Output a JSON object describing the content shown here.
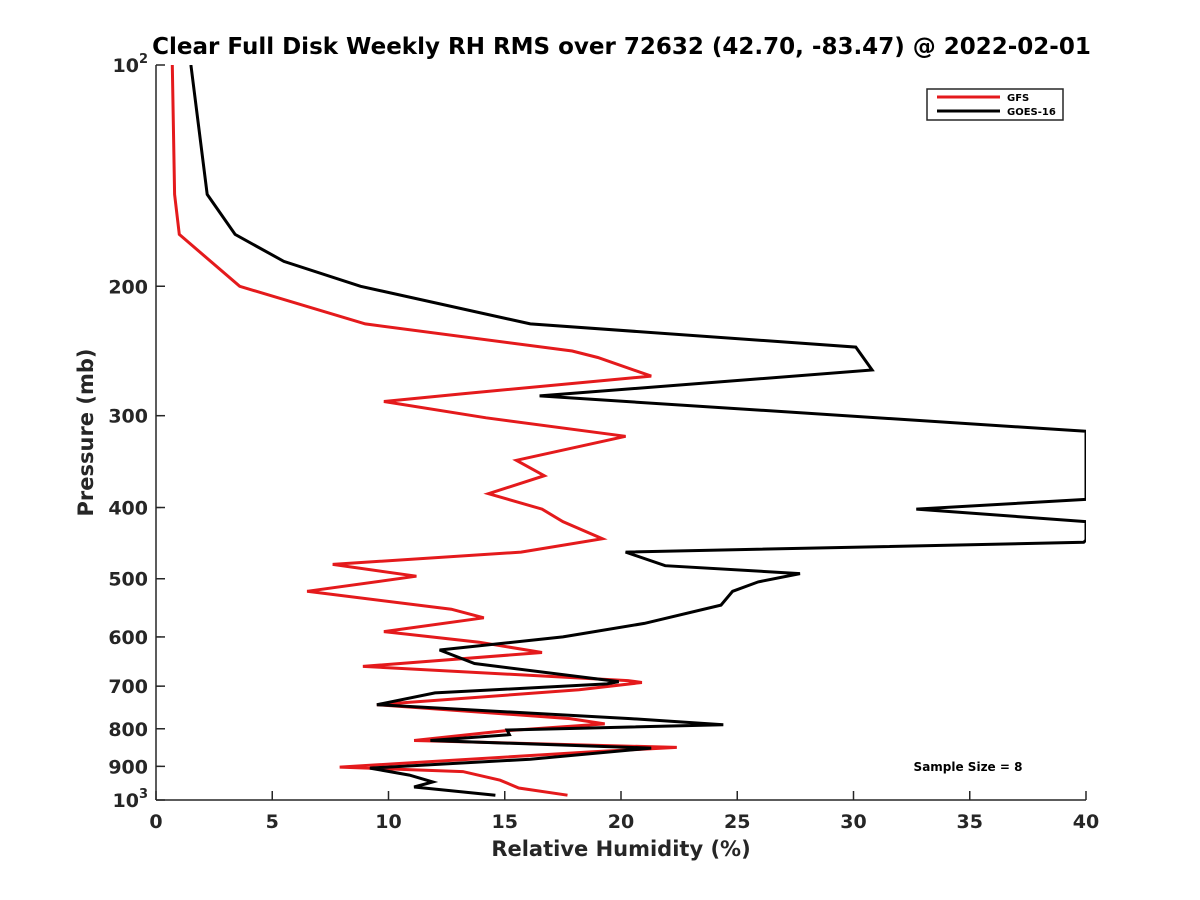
{
  "chart_data": {
    "type": "line",
    "orientation": "profile",
    "title": "Clear Full Disk Weekly RH RMS over 72632 (42.70, -83.47) @ 2022-02-01",
    "xlabel": "Relative Humidity (%)",
    "ylabel": "Pressure (mb)",
    "xlim": [
      0,
      40
    ],
    "ylim": [
      100,
      1000
    ],
    "yscale": "log",
    "yreversed": true,
    "x_ticks": [
      0,
      5,
      10,
      15,
      20,
      25,
      30,
      35,
      40
    ],
    "y_ticks": [
      {
        "value": 100,
        "label": "10",
        "sup": "2"
      },
      {
        "value": 200,
        "label": "200",
        "sup": ""
      },
      {
        "value": 300,
        "label": "300",
        "sup": ""
      },
      {
        "value": 400,
        "label": "400",
        "sup": ""
      },
      {
        "value": 500,
        "label": "500",
        "sup": ""
      },
      {
        "value": 600,
        "label": "600",
        "sup": ""
      },
      {
        "value": 700,
        "label": "700",
        "sup": ""
      },
      {
        "value": 800,
        "label": "800",
        "sup": ""
      },
      {
        "value": 900,
        "label": "900",
        "sup": ""
      },
      {
        "value": 1000,
        "label": "10",
        "sup": "3"
      }
    ],
    "grid": false,
    "legend_position": "top-right",
    "series": [
      {
        "name": "GFS",
        "color": "#e41a1c",
        "points": [
          [
            0.7,
            100
          ],
          [
            0.8,
            150
          ],
          [
            1.0,
            170
          ],
          [
            3.6,
            200
          ],
          [
            9.0,
            225
          ],
          [
            17.9,
            245
          ],
          [
            19.0,
            250
          ],
          [
            21.3,
            265
          ],
          [
            13.2,
            280
          ],
          [
            9.8,
            287
          ],
          [
            14.2,
            302
          ],
          [
            20.2,
            320
          ],
          [
            15.5,
            345
          ],
          [
            16.7,
            362
          ],
          [
            14.3,
            383
          ],
          [
            16.6,
            402
          ],
          [
            17.5,
            418
          ],
          [
            19.2,
            441
          ],
          [
            15.7,
            460
          ],
          [
            7.6,
            478
          ],
          [
            11.2,
            496
          ],
          [
            6.5,
            520
          ],
          [
            12.7,
            550
          ],
          [
            14.1,
            565
          ],
          [
            9.8,
            590
          ],
          [
            13.9,
            610
          ],
          [
            16.6,
            630
          ],
          [
            8.9,
            658
          ],
          [
            20.3,
            688
          ],
          [
            20.9,
            692
          ],
          [
            18.2,
            708
          ],
          [
            9.5,
            742
          ],
          [
            17.8,
            775
          ],
          [
            19.3,
            788
          ],
          [
            15.0,
            805
          ],
          [
            11.1,
            830
          ],
          [
            22.4,
            848
          ],
          [
            18.7,
            860
          ],
          [
            7.9,
            902
          ],
          [
            13.2,
            915
          ],
          [
            14.8,
            940
          ],
          [
            15.6,
            963
          ],
          [
            17.7,
            985
          ]
        ]
      },
      {
        "name": "GOES-16",
        "color": "#000000",
        "points": [
          [
            1.5,
            100
          ],
          [
            2.2,
            150
          ],
          [
            3.4,
            170
          ],
          [
            5.5,
            185
          ],
          [
            8.8,
            200
          ],
          [
            16.1,
            225
          ],
          [
            30.1,
            242
          ],
          [
            30.8,
            260
          ],
          [
            16.5,
            282
          ],
          [
            40.0,
            315
          ],
          [
            40.0,
            390
          ],
          [
            32.7,
            402
          ],
          [
            40.0,
            418
          ],
          [
            40.0,
            443
          ],
          [
            39.9,
            446
          ],
          [
            20.2,
            460
          ],
          [
            21.9,
            480
          ],
          [
            27.7,
            492
          ],
          [
            25.9,
            505
          ],
          [
            24.8,
            520
          ],
          [
            24.3,
            543
          ],
          [
            21.0,
            575
          ],
          [
            17.5,
            600
          ],
          [
            12.2,
            625
          ],
          [
            13.7,
            652
          ],
          [
            19.9,
            690
          ],
          [
            19.4,
            695
          ],
          [
            12.0,
            715
          ],
          [
            9.5,
            742
          ],
          [
            20.4,
            775
          ],
          [
            24.4,
            790
          ],
          [
            15.1,
            803
          ],
          [
            15.2,
            815
          ],
          [
            11.8,
            830
          ],
          [
            21.3,
            850
          ],
          [
            16.1,
            880
          ],
          [
            9.2,
            905
          ],
          [
            10.9,
            925
          ],
          [
            11.9,
            945
          ],
          [
            11.1,
            960
          ],
          [
            14.6,
            985
          ]
        ]
      }
    ],
    "annotations": [
      {
        "text": "Sample Size = 8"
      }
    ]
  }
}
